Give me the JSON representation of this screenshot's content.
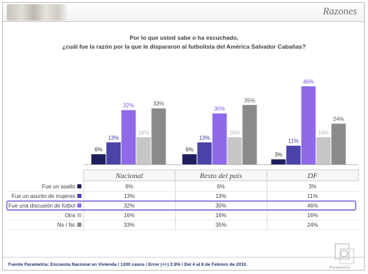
{
  "header": {
    "title": "Razones"
  },
  "question": {
    "line1": "Por lo que usted sabe  o ha escuchado,",
    "line2": "¿cuál fue la razón por la que le dispararon al futbolista del América Salvador Cabañas?"
  },
  "footer": {
    "source": "Fuente Parametría: Encuesta Nacional en Vivienda / 1200 casos / Error (+/-) 2.8% / Del 4 al 8 de Febrero de 2010."
  },
  "logo": {
    "text": "Parametría"
  },
  "chart_data": {
    "type": "bar",
    "categories": [
      "Nacional",
      "Resto del país",
      "DF"
    ],
    "series": [
      {
        "name": "Fue un asalto",
        "values": [
          6,
          6,
          3
        ],
        "color": "#1f1f5e"
      },
      {
        "name": "Fue un asunto de mujeres",
        "values": [
          13,
          13,
          11
        ],
        "color": "#4a43a8"
      },
      {
        "name": "Fue una discusión de fútbol",
        "values": [
          32,
          30,
          46
        ],
        "color": "#8f6ae8"
      },
      {
        "name": "Otra",
        "values": [
          16,
          16,
          16
        ],
        "color": "#c6c6c6"
      },
      {
        "name": "Ns / Nc",
        "values": [
          33,
          35,
          24
        ],
        "color": "#8a8a8a"
      }
    ],
    "label_colors": [
      "#333333",
      "#3f3a9c",
      "#7a55e0",
      "#b8b8b8",
      "#555555"
    ],
    "highlight_series": "Fue una discusión de fútbol",
    "highlight_color": "#6a55d8",
    "ylim": [
      0,
      50
    ],
    "value_suffix": "%",
    "legend": "table-below"
  }
}
